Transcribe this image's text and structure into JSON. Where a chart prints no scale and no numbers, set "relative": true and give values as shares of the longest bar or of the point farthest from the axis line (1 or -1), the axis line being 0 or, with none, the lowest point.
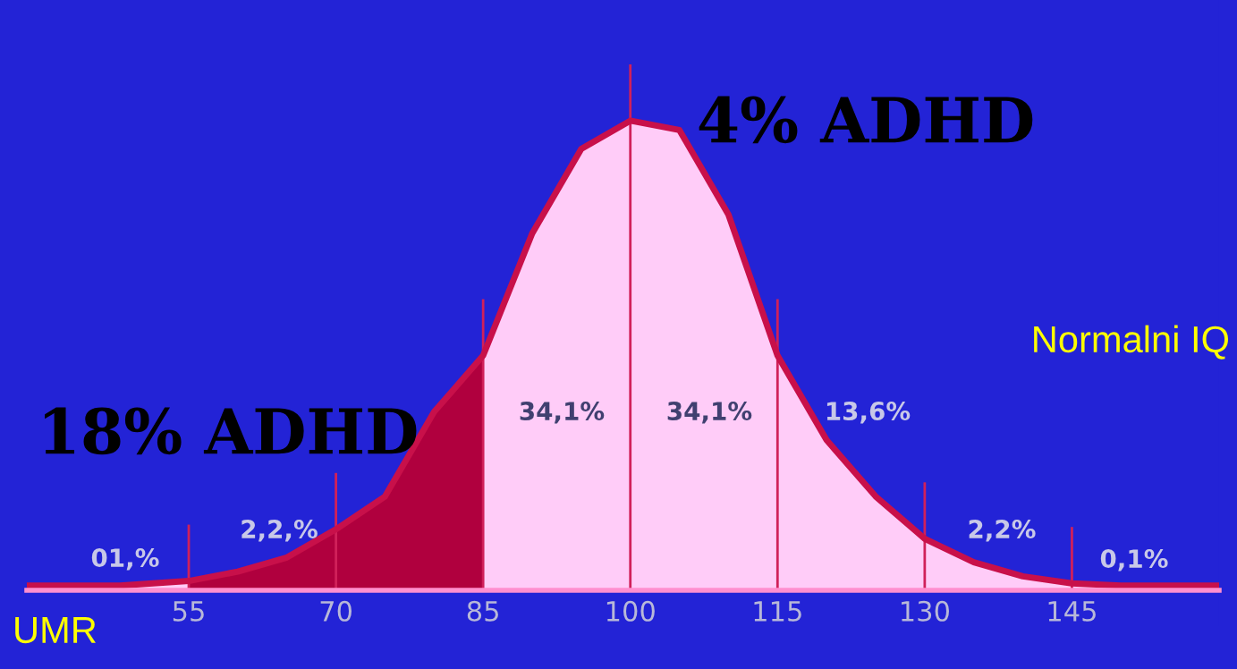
{
  "chart_data": {
    "type": "area",
    "relative": true,
    "x": [
      38.5,
      48,
      55,
      60,
      65,
      70,
      75,
      80,
      85,
      90,
      95,
      100,
      105,
      110,
      115,
      120,
      125,
      130,
      135,
      140,
      145,
      150,
      160
    ],
    "series": [
      {
        "color": "#ffccf8",
        "values": [
          0.01,
          0.01,
          0.02,
          0.04,
          0.07,
          0.13,
          0.2,
          0.38,
          0.5,
          0.76,
          0.94,
          1,
          0.98,
          0.8,
          0.5,
          0.32,
          0.2,
          0.11,
          0.06,
          0.03,
          0.015,
          0.01,
          0.01
        ]
      },
      {
        "color": "#b0003e",
        "x": [
          55,
          60,
          65,
          70,
          75,
          80,
          85
        ],
        "values": [
          0.02,
          0.04,
          0.07,
          0.13,
          0.2,
          0.38,
          0.5
        ]
      }
    ],
    "xlim": [
      38.5,
      160
    ],
    "xticks": [
      55,
      70,
      85,
      100,
      115,
      130,
      145
    ],
    "ref_lines": [
      {
        "axis": "x",
        "value": 55,
        "color": "#d0205a"
      },
      {
        "axis": "x",
        "value": 70,
        "color": "#d0205a"
      },
      {
        "axis": "x",
        "value": 85,
        "color": "#d0205a"
      },
      {
        "axis": "x",
        "value": 100,
        "color": "#d0205a"
      },
      {
        "axis": "x",
        "value": 115,
        "color": "#d0205a"
      },
      {
        "axis": "x",
        "value": 130,
        "color": "#d0205a"
      },
      {
        "axis": "x",
        "value": 145,
        "color": "#d0205a"
      }
    ],
    "annotations": [
      "01,%",
      "2,2,%",
      "34,1%",
      "34,1%",
      "13,6%",
      "2,2%",
      "0,1%",
      "18% ADHD",
      "4% ADHD",
      "Normalni IQ",
      "UMR"
    ],
    "legend": false
  }
}
